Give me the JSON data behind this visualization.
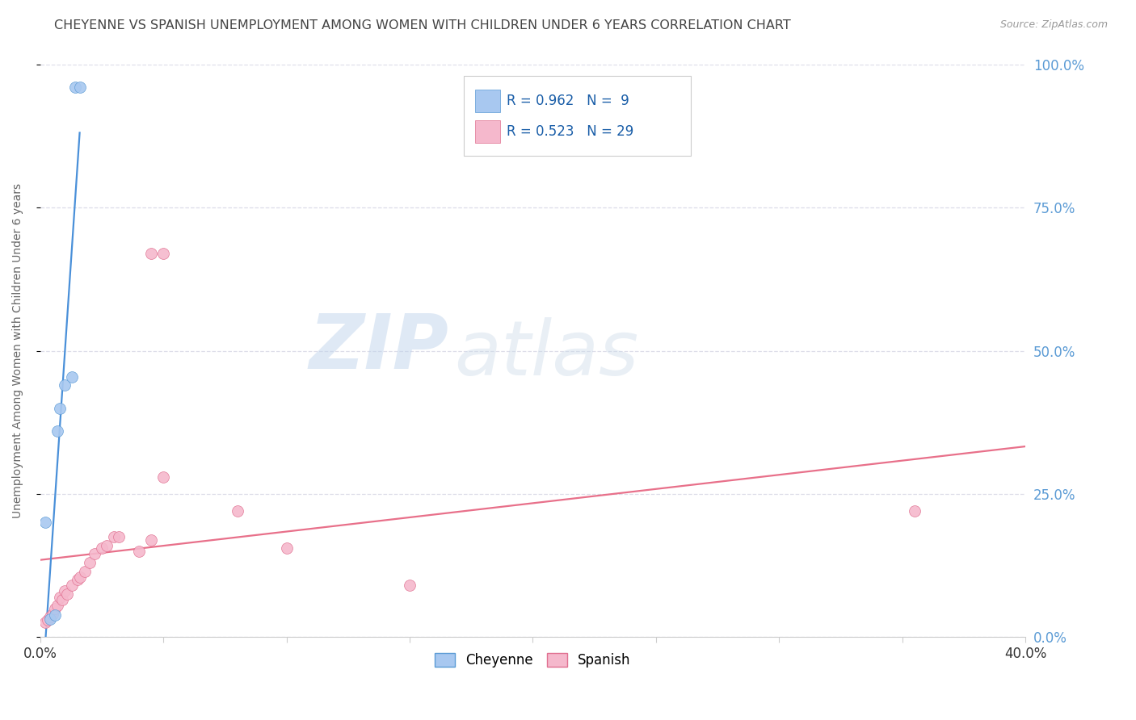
{
  "title": "CHEYENNE VS SPANISH UNEMPLOYMENT AMONG WOMEN WITH CHILDREN UNDER 6 YEARS CORRELATION CHART",
  "source": "Source: ZipAtlas.com",
  "ylabel": "Unemployment Among Women with Children Under 6 years",
  "watermark_zip": "ZIP",
  "watermark_atlas": "atlas",
  "xlim": [
    0.0,
    0.4
  ],
  "ylim": [
    0.0,
    1.0
  ],
  "ytick_values": [
    0.0,
    0.25,
    0.5,
    0.75,
    1.0
  ],
  "ytick_labels": [
    "",
    "",
    "",
    "",
    ""
  ],
  "xtick_values": [
    0.0,
    0.05,
    0.1,
    0.15,
    0.2,
    0.25,
    0.3,
    0.35,
    0.4
  ],
  "legend_blue_R": "0.962",
  "legend_blue_N": " 9",
  "legend_pink_R": "0.523",
  "legend_pink_N": "29",
  "cheyenne_color": "#A8C8F0",
  "cheyenne_edge_color": "#5B9BD5",
  "cheyenne_line_color": "#4A90D9",
  "spanish_color": "#F5B8CC",
  "spanish_edge_color": "#E07090",
  "spanish_line_color": "#E8708A",
  "right_axis_color": "#5B9BD5",
  "right_ytick_labels": [
    "0.0%",
    "25.0%",
    "50.0%",
    "75.0%",
    "100.0%"
  ],
  "right_ytick_values": [
    0.0,
    0.25,
    0.5,
    0.75,
    1.0
  ],
  "cheyenne_x": [
    0.002,
    0.004,
    0.006,
    0.007,
    0.008,
    0.01,
    0.013,
    0.014,
    0.016
  ],
  "cheyenne_y": [
    0.2,
    0.032,
    0.038,
    0.36,
    0.4,
    0.44,
    0.455,
    0.96,
    0.96
  ],
  "spanish_x": [
    0.002,
    0.003,
    0.004,
    0.005,
    0.006,
    0.007,
    0.008,
    0.009,
    0.01,
    0.011,
    0.013,
    0.015,
    0.016,
    0.018,
    0.02,
    0.022,
    0.025,
    0.027,
    0.03,
    0.032,
    0.04,
    0.045,
    0.045,
    0.05,
    0.05,
    0.08,
    0.1,
    0.15,
    0.355
  ],
  "spanish_y": [
    0.025,
    0.03,
    0.035,
    0.04,
    0.05,
    0.055,
    0.07,
    0.065,
    0.08,
    0.075,
    0.09,
    0.1,
    0.105,
    0.115,
    0.13,
    0.145,
    0.155,
    0.16,
    0.175,
    0.175,
    0.15,
    0.17,
    0.67,
    0.28,
    0.67,
    0.22,
    0.155,
    0.09,
    0.22
  ],
  "marker_size": 100,
  "background_color": "#FFFFFF",
  "grid_color": "#DDDDE8",
  "title_color": "#444444"
}
